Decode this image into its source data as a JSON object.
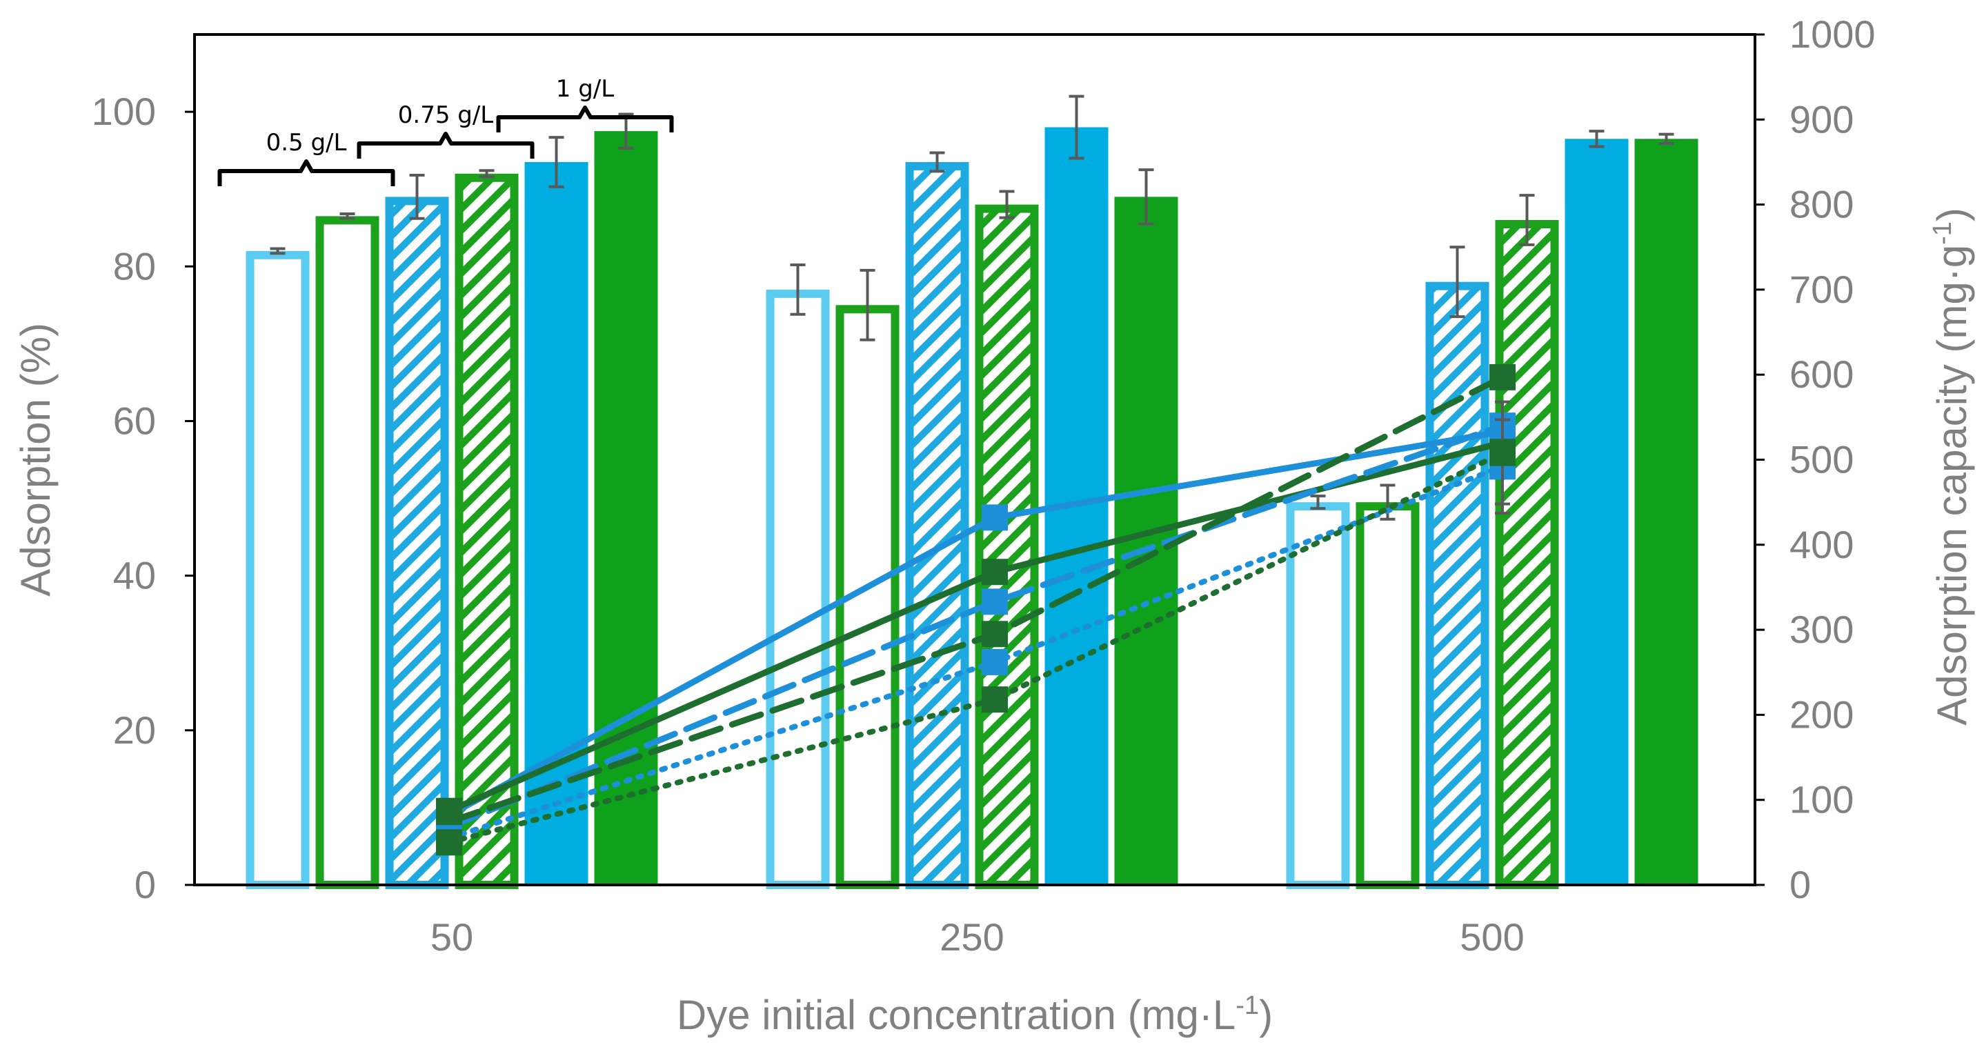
{
  "chart_data": {
    "type": "bar+line",
    "categories": [
      "50",
      "250",
      "500"
    ],
    "xlabel": {
      "main": "Dye initial concentration (mg·L",
      "sup": "-1",
      "tail": ")"
    },
    "ylabel_left": "Adsorption (%)",
    "ylabel_right": {
      "main": "Adsorption capacity (mg·g",
      "sup": "-1",
      "tail": ")"
    },
    "y_left": {
      "min": 0,
      "max": 110,
      "ticks": [
        0,
        20,
        40,
        60,
        80,
        100
      ]
    },
    "y_right": {
      "min": 0,
      "max": 1000,
      "ticks": [
        0,
        100,
        200,
        300,
        400,
        500,
        600,
        700,
        800,
        900,
        1000
      ]
    },
    "bar_series": [
      {
        "name": "0.5 g/L blue",
        "style": "outline",
        "color": "#5BCBEF",
        "values": [
          82,
          77,
          49.5
        ],
        "errors": [
          0.3,
          3.2,
          0.8
        ]
      },
      {
        "name": "0.5 g/L green",
        "style": "outline",
        "color": "#1BA11B",
        "values": [
          86.5,
          75,
          49.5
        ],
        "errors": [
          0.3,
          4.5,
          2.2
        ]
      },
      {
        "name": "0.75 g/L blue",
        "style": "hatched",
        "color": "#1FA9E1",
        "values": [
          89,
          93.5,
          78
        ],
        "errors": [
          2.8,
          1.2,
          4.5
        ]
      },
      {
        "name": "0.75 g/L green",
        "style": "hatched",
        "color": "#1BA11B",
        "values": [
          92,
          88,
          86
        ],
        "errors": [
          0.4,
          1.7,
          3.2
        ]
      },
      {
        "name": "1 g/L blue",
        "style": "solid",
        "color": "#00ADE0",
        "values": [
          93.5,
          98,
          96.5
        ],
        "errors": [
          3.2,
          4,
          1
        ]
      },
      {
        "name": "1 g/L green",
        "style": "solid",
        "color": "#0FA11B",
        "values": [
          97.5,
          89,
          96.5
        ],
        "errors": [
          2.2,
          3.5,
          0.6
        ]
      }
    ],
    "line_series": [
      {
        "name": "0.5 g/L blue capacity",
        "dash": "solid",
        "color": "#1E90D9",
        "values": [
          82,
          432,
          533
        ],
        "errors": [
          0,
          0,
          0
        ]
      },
      {
        "name": "0.5 g/L green capacity",
        "dash": "solid",
        "color": "#1E6E30",
        "values": [
          87,
          368,
          520
        ],
        "errors": [
          0,
          0,
          0
        ]
      },
      {
        "name": "0.75 g/L blue capacity",
        "dash": "dash",
        "color": "#1E90D9",
        "values": [
          68,
          333,
          540
        ],
        "errors": [
          0,
          0,
          0
        ]
      },
      {
        "name": "0.75 g/L green capacity",
        "dash": "dash",
        "color": "#1E6E30",
        "values": [
          74,
          295,
          597
        ],
        "errors": [
          0,
          0,
          0
        ]
      },
      {
        "name": "1 g/L blue capacity",
        "dash": "dot",
        "color": "#1E90D9",
        "values": [
          55,
          262,
          492
        ],
        "errors": [
          0,
          0,
          55
        ]
      },
      {
        "name": "1 g/L green capacity",
        "dash": "dot",
        "color": "#1E6E30",
        "values": [
          50,
          218,
          508
        ],
        "errors": [
          0,
          0,
          60
        ]
      }
    ],
    "brackets": [
      {
        "label": "0.5 g/L",
        "first_bar": 0,
        "last_bar": 1
      },
      {
        "label": "0.75 g/L",
        "first_bar": 2,
        "last_bar": 3
      },
      {
        "label": "1 g/L",
        "first_bar": 4,
        "last_bar": 5
      }
    ]
  }
}
